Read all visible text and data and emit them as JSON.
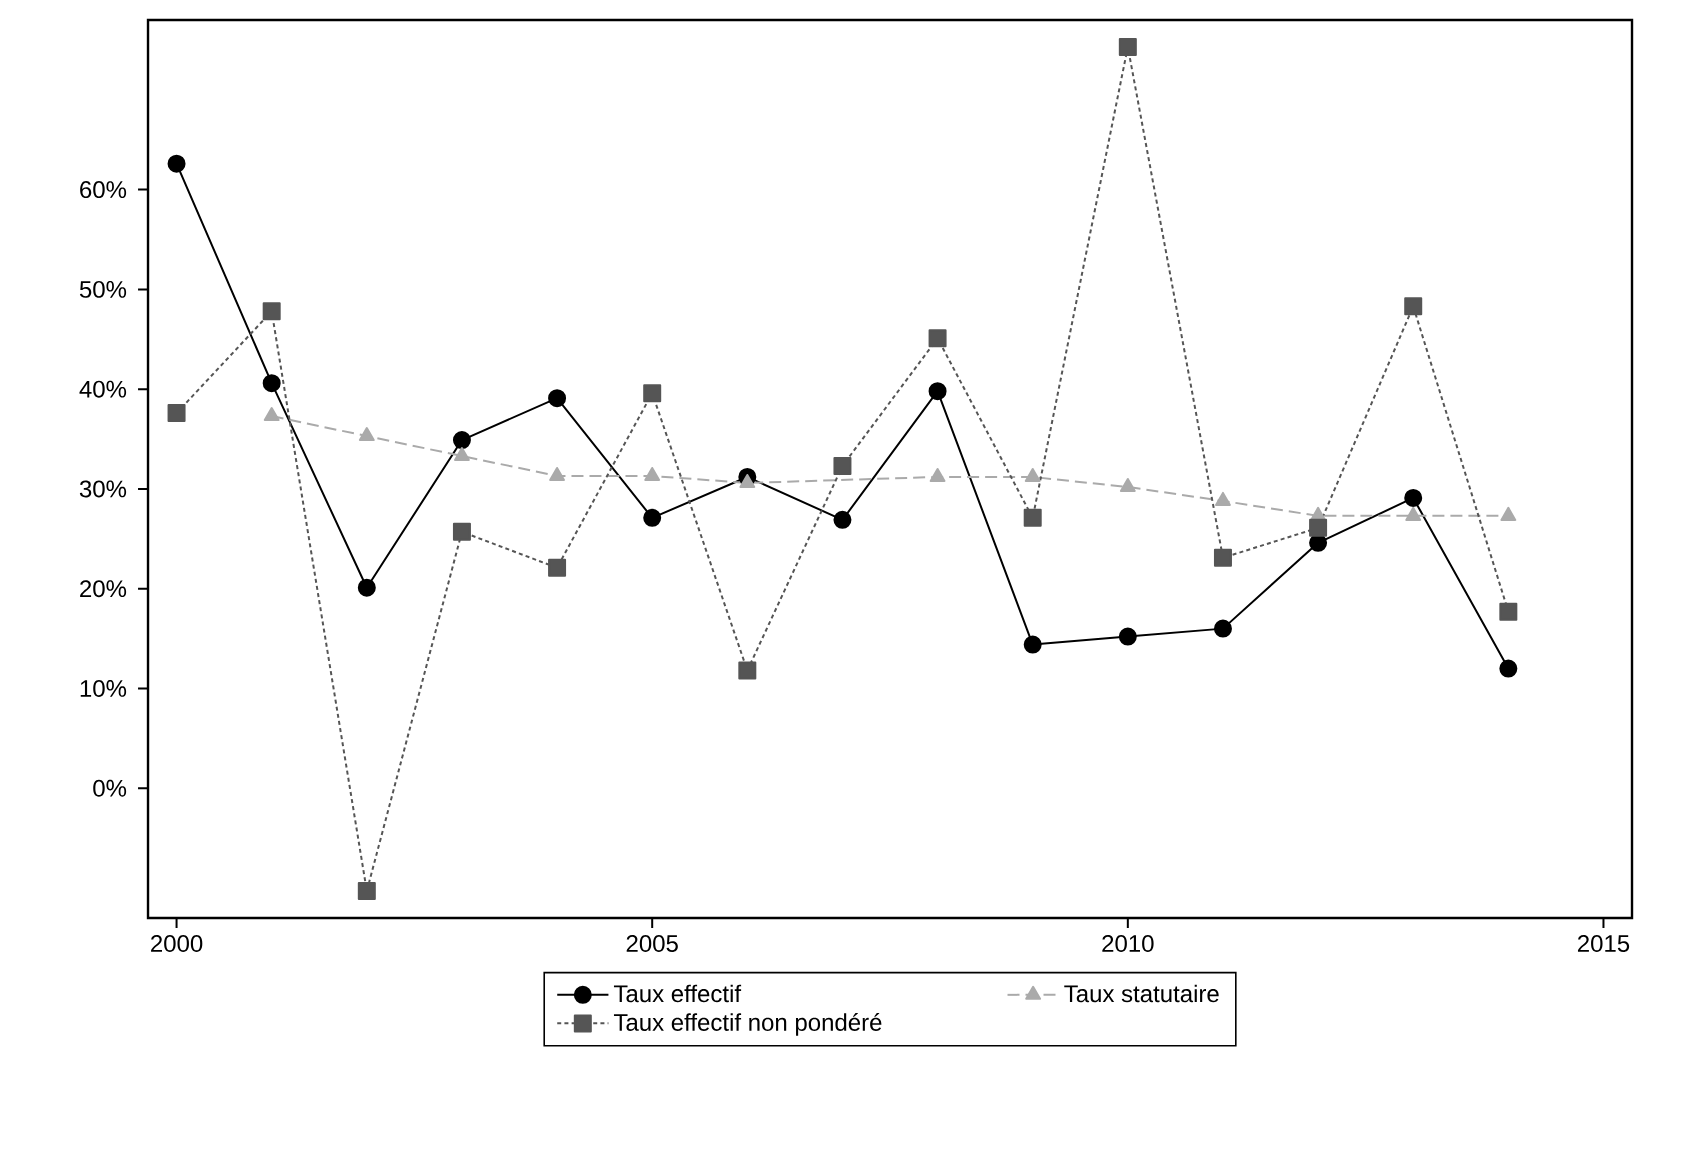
{
  "chart_data": {
    "type": "line",
    "x": [
      2000,
      2001,
      2002,
      2003,
      2004,
      2005,
      2006,
      2007,
      2008,
      2009,
      2010,
      2011,
      2012,
      2013,
      2014
    ],
    "series": [
      {
        "name": "Taux effectif",
        "color": "#000000",
        "line_style": "solid",
        "marker": "circle",
        "values": [
          62.6,
          40.6,
          20.1,
          34.9,
          39.1,
          27.1,
          31.2,
          26.9,
          39.8,
          14.4,
          15.2,
          16.0,
          24.6,
          29.1,
          12.0
        ]
      },
      {
        "name": "Taux statutaire",
        "color": "#aaaaaa",
        "line_style": "dashed",
        "marker": "triangle",
        "values": [
          null,
          37.3,
          35.3,
          33.3,
          31.3,
          31.3,
          30.6,
          null,
          31.2,
          31.2,
          30.2,
          28.8,
          27.3,
          27.3,
          27.3
        ]
      },
      {
        "name": "Taux effectif non pondéré",
        "color": "#555555",
        "line_style": "dotted",
        "marker": "square",
        "values": [
          37.6,
          47.8,
          -10.3,
          25.7,
          22.1,
          39.6,
          11.8,
          32.3,
          45.1,
          27.1,
          74.3,
          23.1,
          26.1,
          48.3,
          17.7
        ]
      }
    ],
    "xlim": [
      1999.7,
      2015.3
    ],
    "ylim": [
      -13,
      77
    ],
    "xticks": [
      2000,
      2005,
      2010,
      2015
    ],
    "yticks": [
      {
        "value": 0,
        "label": "0%"
      },
      {
        "value": 10,
        "label": "10%"
      },
      {
        "value": 20,
        "label": "20%"
      },
      {
        "value": 30,
        "label": "30%"
      },
      {
        "value": 40,
        "label": "40%"
      },
      {
        "value": 50,
        "label": "50%"
      },
      {
        "value": 60,
        "label": "60%"
      }
    ],
    "legend": "bottom"
  }
}
